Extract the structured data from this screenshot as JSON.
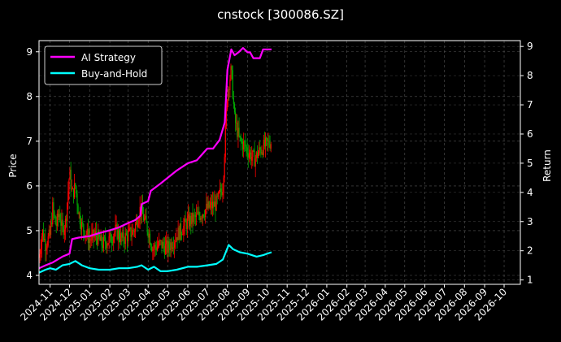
{
  "chart_data": {
    "type": "line",
    "title": "cnstock [300086.SZ]",
    "ylabel": "Price",
    "y2label": "Return",
    "ylim": [
      3.8,
      9.25
    ],
    "y2lim": [
      0.85,
      9.2
    ],
    "y_ticks": [
      "4",
      "5",
      "6",
      "7",
      "8",
      "9"
    ],
    "y2_ticks": [
      "1",
      "2",
      "3",
      "4",
      "5",
      "6",
      "7",
      "8",
      "9"
    ],
    "x_ticks": [
      "2024-11",
      "2024-12",
      "2025-01",
      "2025-02",
      "2025-03",
      "2025-04",
      "2025-05",
      "2025-06",
      "2025-07",
      "2025-08",
      "2025-09",
      "2025-10",
      "2025-11",
      "2025-12",
      "2026-01",
      "2026-02",
      "2026-03",
      "2026-04",
      "2026-05",
      "2026-06",
      "2026-07",
      "2026-08",
      "2026-09",
      "2026-10"
    ],
    "xlim": [
      "2024-10-15",
      "2026-10-26"
    ],
    "grid": true,
    "legend_position": "top-left",
    "colors": {
      "AI Strategy": "#ff00ff",
      "Buy-and-Hold": "#00ffff",
      "candle_up": "#ff0000",
      "candle_down": "#00aa00"
    },
    "series": [
      {
        "name": "AI Strategy",
        "axis": "right",
        "points": [
          [
            "2024-10-15",
            1.4
          ],
          [
            "2024-10-25",
            1.5
          ],
          [
            "2024-11-05",
            1.6
          ],
          [
            "2024-11-20",
            1.8
          ],
          [
            "2024-12-01",
            1.9
          ],
          [
            "2024-12-05",
            2.4
          ],
          [
            "2024-12-15",
            2.45
          ],
          [
            "2025-01-01",
            2.5
          ],
          [
            "2025-01-15",
            2.6
          ],
          [
            "2025-02-01",
            2.7
          ],
          [
            "2025-02-15",
            2.8
          ],
          [
            "2025-03-01",
            2.95
          ],
          [
            "2025-03-12",
            3.05
          ],
          [
            "2025-03-20",
            3.2
          ],
          [
            "2025-03-22",
            3.6
          ],
          [
            "2025-04-01",
            3.7
          ],
          [
            "2025-04-05",
            4.05
          ],
          [
            "2025-04-20",
            4.3
          ],
          [
            "2025-05-01",
            4.5
          ],
          [
            "2025-05-15",
            4.75
          ],
          [
            "2025-06-01",
            5.0
          ],
          [
            "2025-06-15",
            5.1
          ],
          [
            "2025-07-01",
            5.5
          ],
          [
            "2025-07-10",
            5.5
          ],
          [
            "2025-07-20",
            5.8
          ],
          [
            "2025-07-28",
            6.4
          ],
          [
            "2025-08-01",
            8.2
          ],
          [
            "2025-08-07",
            8.9
          ],
          [
            "2025-08-12",
            8.7
          ],
          [
            "2025-08-18",
            8.8
          ],
          [
            "2025-08-25",
            8.95
          ],
          [
            "2025-09-01",
            8.8
          ],
          [
            "2025-09-05",
            8.8
          ],
          [
            "2025-09-10",
            8.6
          ],
          [
            "2025-09-20",
            8.6
          ],
          [
            "2025-09-25",
            8.9
          ],
          [
            "2025-10-08",
            8.9
          ]
        ]
      },
      {
        "name": "Buy-and-Hold",
        "axis": "right",
        "points": [
          [
            "2024-10-15",
            1.25
          ],
          [
            "2024-10-25",
            1.35
          ],
          [
            "2024-11-01",
            1.4
          ],
          [
            "2024-11-10",
            1.35
          ],
          [
            "2024-11-20",
            1.5
          ],
          [
            "2024-12-01",
            1.55
          ],
          [
            "2024-12-10",
            1.65
          ],
          [
            "2024-12-20",
            1.5
          ],
          [
            "2025-01-01",
            1.4
          ],
          [
            "2025-01-15",
            1.35
          ],
          [
            "2025-02-01",
            1.35
          ],
          [
            "2025-02-15",
            1.4
          ],
          [
            "2025-03-01",
            1.4
          ],
          [
            "2025-03-15",
            1.45
          ],
          [
            "2025-03-22",
            1.5
          ],
          [
            "2025-04-01",
            1.35
          ],
          [
            "2025-04-10",
            1.45
          ],
          [
            "2025-04-20",
            1.3
          ],
          [
            "2025-05-01",
            1.3
          ],
          [
            "2025-05-15",
            1.35
          ],
          [
            "2025-06-01",
            1.45
          ],
          [
            "2025-06-15",
            1.45
          ],
          [
            "2025-07-01",
            1.5
          ],
          [
            "2025-07-15",
            1.55
          ],
          [
            "2025-07-25",
            1.7
          ],
          [
            "2025-08-03",
            2.2
          ],
          [
            "2025-08-10",
            2.05
          ],
          [
            "2025-08-20",
            1.95
          ],
          [
            "2025-09-01",
            1.9
          ],
          [
            "2025-09-15",
            1.8
          ],
          [
            "2025-09-25",
            1.85
          ],
          [
            "2025-10-01",
            1.9
          ],
          [
            "2025-10-08",
            1.95
          ]
        ]
      },
      {
        "name": "Price",
        "axis": "left",
        "type": "candlestick",
        "points": [
          [
            "2024-10-15",
            4.4
          ],
          [
            "2024-10-20",
            5.0
          ],
          [
            "2024-10-25",
            4.7
          ],
          [
            "2024-11-01",
            4.9
          ],
          [
            "2024-11-05",
            5.5
          ],
          [
            "2024-11-10",
            5.1
          ],
          [
            "2024-11-15",
            5.4
          ],
          [
            "2024-11-20",
            5.0
          ],
          [
            "2024-11-25",
            5.2
          ],
          [
            "2024-12-01",
            6.3
          ],
          [
            "2024-12-05",
            5.8
          ],
          [
            "2024-12-10",
            6.0
          ],
          [
            "2024-12-15",
            5.4
          ],
          [
            "2024-12-20",
            5.1
          ],
          [
            "2025-01-01",
            4.8
          ],
          [
            "2025-01-10",
            4.9
          ],
          [
            "2025-01-20",
            4.7
          ],
          [
            "2025-02-01",
            4.8
          ],
          [
            "2025-02-10",
            5.0
          ],
          [
            "2025-02-20",
            4.8
          ],
          [
            "2025-03-01",
            4.9
          ],
          [
            "2025-03-10",
            5.0
          ],
          [
            "2025-03-20",
            5.5
          ],
          [
            "2025-04-01",
            5.0
          ],
          [
            "2025-04-08",
            4.6
          ],
          [
            "2025-04-20",
            4.7
          ],
          [
            "2025-05-01",
            4.6
          ],
          [
            "2025-05-15",
            4.9
          ],
          [
            "2025-06-01",
            5.2
          ],
          [
            "2025-06-15",
            5.3
          ],
          [
            "2025-07-01",
            5.5
          ],
          [
            "2025-07-15",
            5.6
          ],
          [
            "2025-07-25",
            6.0
          ],
          [
            "2025-08-01",
            8.1
          ],
          [
            "2025-08-07",
            8.6
          ],
          [
            "2025-08-12",
            7.5
          ],
          [
            "2025-08-20",
            7.0
          ],
          [
            "2025-08-28",
            6.9
          ],
          [
            "2025-09-05",
            6.7
          ],
          [
            "2025-09-12",
            6.6
          ],
          [
            "2025-09-20",
            6.8
          ],
          [
            "2025-09-28",
            6.9
          ],
          [
            "2025-10-08",
            7.0
          ]
        ]
      }
    ],
    "legend": [
      "AI Strategy",
      "Buy-and-Hold"
    ]
  }
}
